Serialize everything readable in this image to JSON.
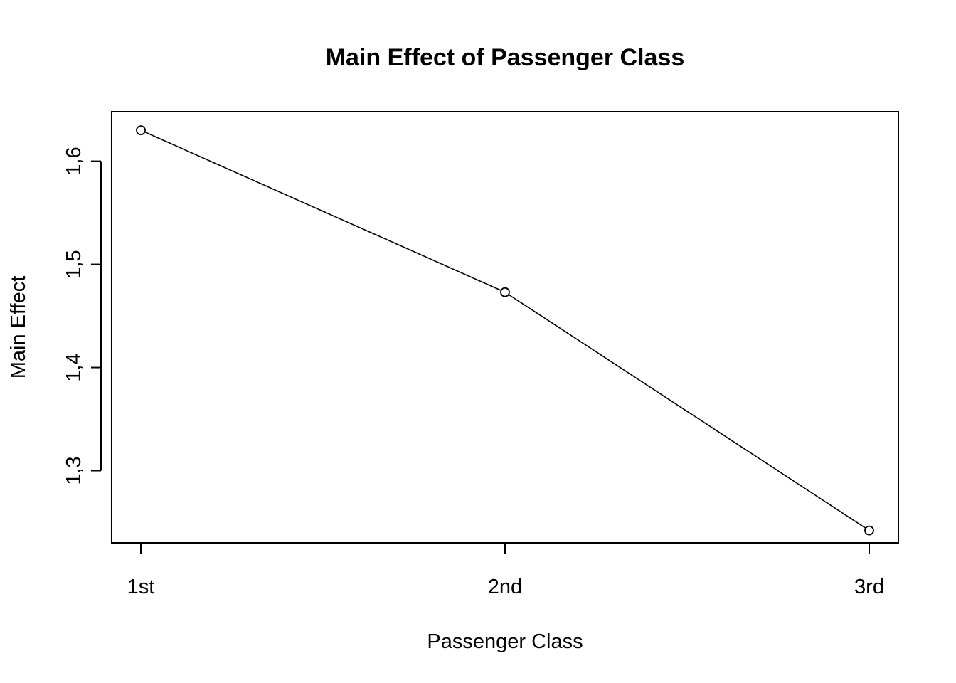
{
  "chart_data": {
    "type": "line",
    "title": "Main Effect of Passenger Class",
    "xlabel": "Passenger Class",
    "ylabel": "Main Effect",
    "categories": [
      "1st",
      "2nd",
      "3rd"
    ],
    "series": [
      {
        "values": [
          1.63,
          1.473,
          1.242
        ]
      }
    ],
    "ylim": [
      1.23,
      1.648
    ],
    "yticks": [
      1.3,
      1.4,
      1.5,
      1.6
    ],
    "ytick_labels": [
      "1,3",
      "1,4",
      "1,5",
      "1,6"
    ],
    "grid": false,
    "marker": "open-circle",
    "line_color": "#000000"
  }
}
